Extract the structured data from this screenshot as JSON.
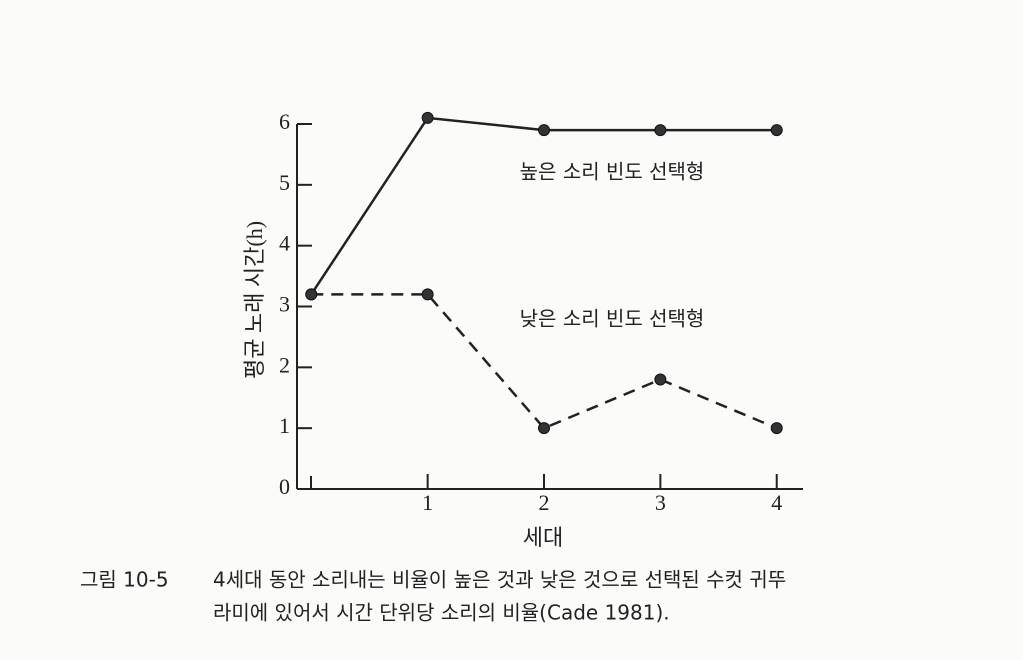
{
  "chart_data": {
    "type": "line",
    "x_label": "세대",
    "y_label": "평균 노래 시간(h)",
    "x": [
      0,
      1,
      2,
      3,
      4
    ],
    "series": [
      {
        "name": "높은 소리 빈도 선택형",
        "color": "#222222",
        "style": "solid",
        "values": [
          3.2,
          6.1,
          5.9,
          5.9,
          5.9
        ]
      },
      {
        "name": "낮은 소리 빈도 선택형",
        "color": "#222222",
        "style": "dashed",
        "values": [
          3.2,
          3.2,
          1.0,
          1.8,
          1.0
        ]
      }
    ],
    "xlim": [
      -0.14,
      4.2
    ],
    "xticks": [
      1,
      2,
      3,
      4
    ],
    "ylim": [
      0,
      6
    ],
    "yticks": [
      0,
      1,
      2,
      3,
      4,
      5,
      6
    ],
    "grid": false
  },
  "caption": {
    "label": "그림 10-5",
    "lines": [
      "4세대 동안 소리내는 비율이 높은 것과 낮은 것으로 선택된 수컷 귀뚜",
      "라미에 있어서 시간 단위당 소리의 비율(Cade 1981)."
    ]
  }
}
